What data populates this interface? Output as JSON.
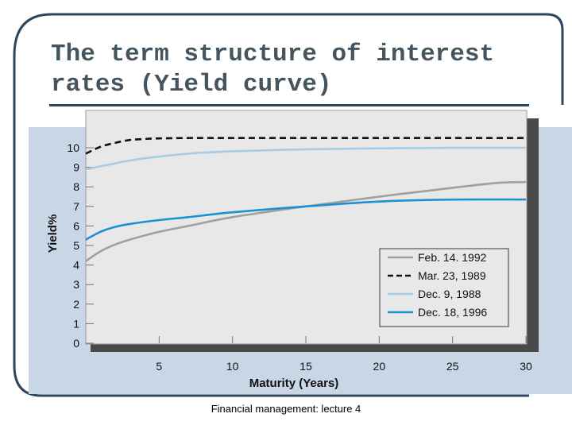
{
  "slide": {
    "title": "The term structure of interest\nrates (Yield curve)",
    "footer": "Financial management: lecture 4"
  },
  "colors": {
    "title_text": "#44555f",
    "title_rule": "#2d4660",
    "frame_line": "#2d4660",
    "outer_panel": "#c9d6e6",
    "plot_background": "#e8e8e8",
    "plot_shadow": "#4a4a4a"
  },
  "chart_data": {
    "type": "line",
    "xlabel": "Maturity (Years)",
    "ylabel": "Yield%",
    "xlim": [
      0,
      30
    ],
    "ylim": [
      0,
      11
    ],
    "xticks": [
      5,
      10,
      15,
      20,
      25,
      30
    ],
    "yticks": [
      0,
      1,
      2,
      3,
      4,
      5,
      6,
      7,
      8,
      9,
      10
    ],
    "grid": false,
    "legend_position": "bottom-right",
    "series": [
      {
        "name": "Feb. 14. 1992",
        "color": "#a0a0a0",
        "dash": "solid",
        "x": [
          0,
          1,
          2,
          3,
          5,
          7,
          10,
          15,
          20,
          25,
          28,
          30
        ],
        "y": [
          4.2,
          4.7,
          5.05,
          5.3,
          5.7,
          6.0,
          6.45,
          7.0,
          7.5,
          7.95,
          8.2,
          8.25
        ]
      },
      {
        "name": "Mar. 23, 1989",
        "color": "#111111",
        "dash": "dashed",
        "x": [
          0,
          1,
          2,
          3,
          4,
          5,
          7,
          10,
          15,
          20,
          25,
          30
        ],
        "y": [
          9.7,
          10.05,
          10.25,
          10.4,
          10.45,
          10.48,
          10.5,
          10.5,
          10.5,
          10.5,
          10.5,
          10.5
        ]
      },
      {
        "name": "Dec. 9, 1988",
        "color": "#a6cbe6",
        "dash": "solid",
        "x": [
          0,
          1,
          2,
          3,
          5,
          7,
          10,
          15,
          20,
          25,
          30
        ],
        "y": [
          8.9,
          9.05,
          9.2,
          9.35,
          9.55,
          9.7,
          9.82,
          9.92,
          9.97,
          10.0,
          10.0
        ]
      },
      {
        "name": "Dec. 18, 1996",
        "color": "#1f8fd6",
        "dash": "solid",
        "x": [
          0,
          1,
          2,
          3,
          5,
          7,
          10,
          15,
          20,
          25,
          30
        ],
        "y": [
          5.3,
          5.7,
          5.95,
          6.1,
          6.3,
          6.45,
          6.7,
          7.0,
          7.25,
          7.35,
          7.35
        ]
      }
    ]
  }
}
